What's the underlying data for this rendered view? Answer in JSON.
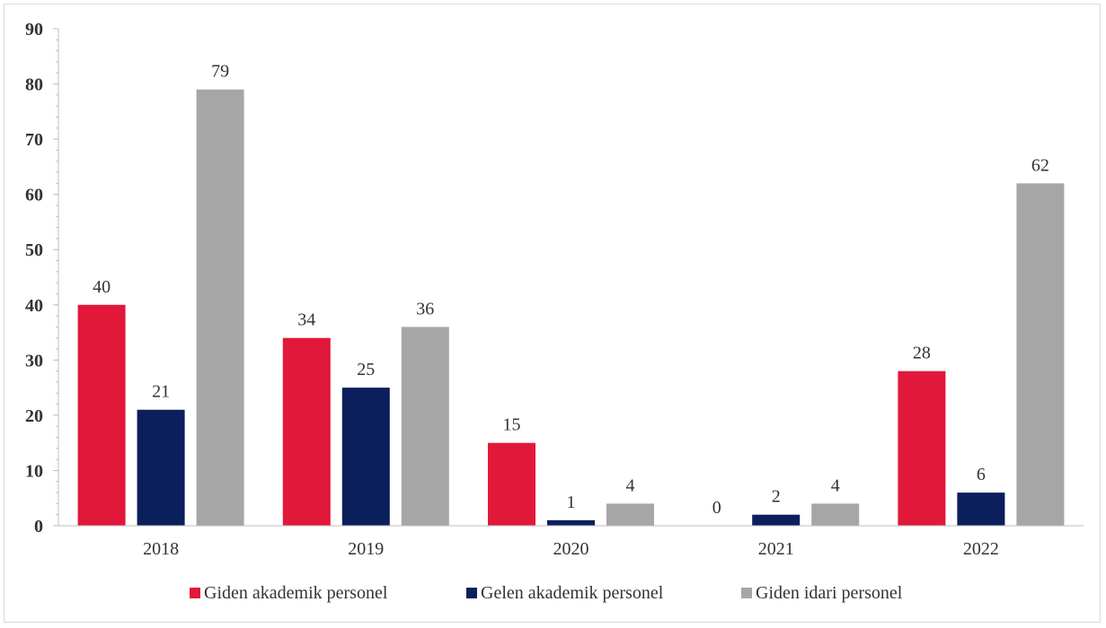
{
  "chart_data": {
    "type": "bar",
    "categories": [
      "2018",
      "2019",
      "2020",
      "2021",
      "2022"
    ],
    "series": [
      {
        "name": "Giden akademik personel",
        "values": [
          40,
          34,
          15,
          0,
          28
        ],
        "color": "#e2183a"
      },
      {
        "name": "Gelen akademik personel",
        "values": [
          21,
          25,
          1,
          2,
          6
        ],
        "color": "#0b1f5c"
      },
      {
        "name": "Giden idari personel",
        "values": [
          79,
          36,
          4,
          4,
          62
        ],
        "color": "#a6a6a6"
      }
    ],
    "ylim": [
      0,
      90
    ],
    "yticks": [
      "0",
      "10",
      "20",
      "30",
      "40",
      "50",
      "60",
      "70",
      "80",
      "90"
    ],
    "grid": false,
    "legend_position": "bottom",
    "data_labels": true
  }
}
